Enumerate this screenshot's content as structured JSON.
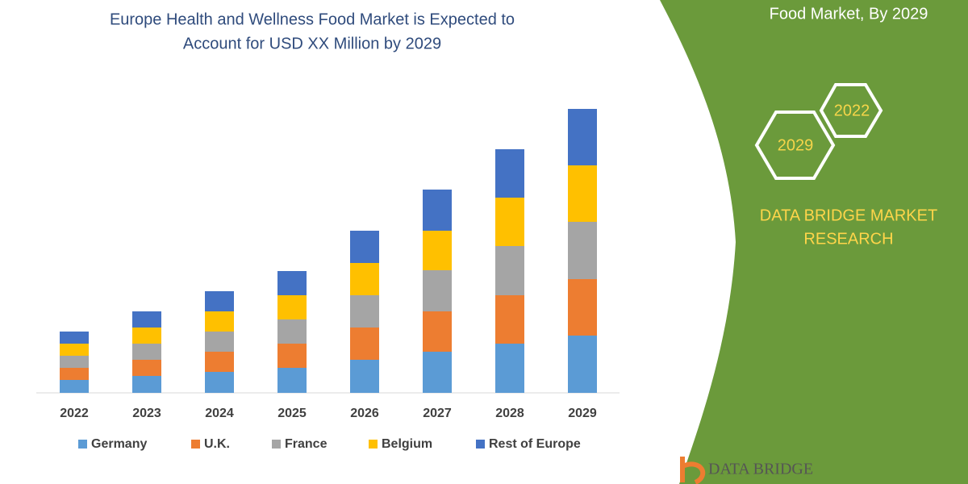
{
  "chart_data": {
    "type": "stacked-bar",
    "title": [
      "Europe Health and Wellness Food Market is Expected to",
      "Account for USD XX Million by 2029"
    ],
    "categories": [
      "2022",
      "2023",
      "2024",
      "2025",
      "2026",
      "2027",
      "2028",
      "2029"
    ],
    "series": [
      {
        "name": "Germany",
        "color": "#5b9bd5",
        "values": [
          16,
          21,
          26,
          31,
          41,
          51,
          61,
          71
        ]
      },
      {
        "name": "U.K.",
        "color": "#ed7d31",
        "values": [
          15,
          20,
          25,
          30,
          40,
          50,
          60,
          70
        ]
      },
      {
        "name": "France",
        "color": "#a5a5a5",
        "values": [
          15,
          20,
          25,
          30,
          40,
          51,
          61,
          71
        ]
      },
      {
        "name": "Belgium",
        "color": "#ffc000",
        "values": [
          15,
          20,
          25,
          30,
          40,
          49,
          60,
          70
        ]
      },
      {
        "name": "Rest of Europe",
        "color": "#4472c4",
        "values": [
          15,
          20,
          25,
          30,
          40,
          51,
          60,
          70
        ]
      }
    ],
    "ylim": [
      0,
      352
    ]
  },
  "panel": {
    "heading": "Food Market, By 2029",
    "hex_years": [
      "2022",
      "2029"
    ],
    "brand": [
      "DATA BRIDGE MARKET",
      "RESEARCH"
    ],
    "logo": "DATA BRIDGE"
  }
}
